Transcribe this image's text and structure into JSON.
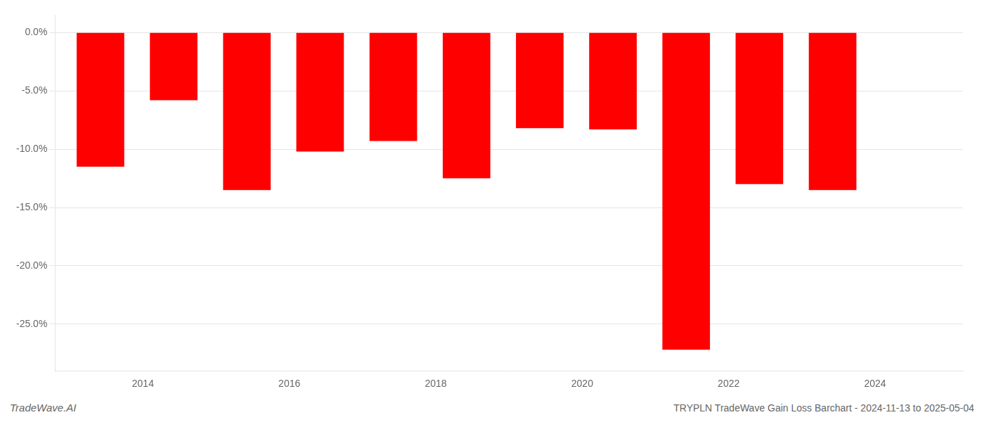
{
  "chart_data": {
    "type": "bar",
    "x": [
      2013.42,
      2014.42,
      2015.42,
      2016.42,
      2017.42,
      2018.42,
      2019.42,
      2020.42,
      2021.42,
      2022.42,
      2023.42
    ],
    "values": [
      -11.5,
      -5.8,
      -13.5,
      -10.2,
      -9.3,
      -12.5,
      -8.2,
      -8.3,
      -27.2,
      -13.0,
      -13.5
    ],
    "color": "#ff0000",
    "xlim": [
      2012.8,
      2025.2
    ],
    "xticks": [
      2014,
      2016,
      2018,
      2020,
      2022,
      2024
    ],
    "ylim": [
      -29,
      1.5
    ],
    "yticks": [
      {
        "value": 0.0,
        "label": "0.0%"
      },
      {
        "value": -5.0,
        "label": "-5.0%"
      },
      {
        "value": -10.0,
        "label": "-10.0%"
      },
      {
        "value": -15.0,
        "label": "-15.0%"
      },
      {
        "value": -20.0,
        "label": "-20.0%"
      },
      {
        "value": -25.0,
        "label": "-25.0%"
      }
    ],
    "grid": true,
    "annotations": [
      "TradeWave.AI",
      "TRYPLN TradeWave Gain Loss Barchart - 2024-11-13 to 2025-05-04"
    ]
  }
}
